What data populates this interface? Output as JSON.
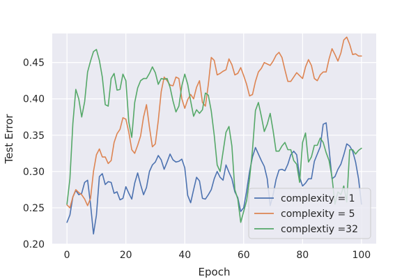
{
  "chart_data": {
    "type": "line",
    "title": "",
    "xlabel": "Epoch",
    "ylabel": "Test Error",
    "xlim": [
      -5,
      105
    ],
    "ylim": [
      0.2,
      0.49
    ],
    "xticks": [
      0,
      20,
      40,
      60,
      80,
      100
    ],
    "xtick_labels": [
      "0",
      "20",
      "40",
      "60",
      "80",
      "100"
    ],
    "yticks": [
      0.2,
      0.25,
      0.3,
      0.35,
      0.4,
      0.45
    ],
    "ytick_labels": [
      "0.20",
      "0.25",
      "0.30",
      "0.35",
      "0.40",
      "0.45"
    ],
    "grid": true,
    "legend_position": "lower-right",
    "background": "#eaeaf2",
    "series": [
      {
        "name": "complexity = 1",
        "color": "#4c72b0",
        "x": [
          0,
          1,
          2,
          3,
          4,
          5,
          6,
          7,
          8,
          9,
          10,
          11,
          12,
          13,
          14,
          15,
          16,
          17,
          18,
          19,
          20,
          21,
          22,
          23,
          24,
          25,
          26,
          27,
          28,
          29,
          30,
          31,
          32,
          33,
          34,
          35,
          36,
          37,
          38,
          39,
          40,
          41,
          42,
          43,
          44,
          45,
          46,
          47,
          48,
          49,
          50,
          51,
          52,
          53,
          54,
          55,
          56,
          57,
          58,
          59,
          60,
          61,
          62,
          63,
          64,
          65,
          66,
          67,
          68,
          69,
          70,
          71,
          72,
          73,
          74,
          75,
          76,
          77,
          78,
          79,
          80,
          81,
          82,
          83,
          84,
          85,
          86,
          87,
          88,
          89,
          90,
          91,
          92,
          93,
          94,
          95,
          96,
          97,
          98,
          99,
          100
        ],
        "y": [
          0.23,
          0.24,
          0.265,
          0.274,
          0.268,
          0.27,
          0.285,
          0.288,
          0.255,
          0.214,
          0.24,
          0.293,
          0.297,
          0.282,
          0.286,
          0.285,
          0.27,
          0.272,
          0.261,
          0.263,
          0.279,
          0.27,
          0.262,
          0.284,
          0.298,
          0.282,
          0.268,
          0.278,
          0.3,
          0.309,
          0.313,
          0.322,
          0.316,
          0.303,
          0.313,
          0.324,
          0.316,
          0.313,
          0.314,
          0.317,
          0.305,
          0.267,
          0.257,
          0.275,
          0.292,
          0.287,
          0.263,
          0.262,
          0.268,
          0.275,
          0.29,
          0.3,
          0.292,
          0.288,
          0.309,
          0.299,
          0.29,
          0.272,
          0.264,
          0.245,
          0.25,
          0.273,
          0.3,
          0.32,
          0.333,
          0.324,
          0.315,
          0.307,
          0.29,
          0.253,
          0.268,
          0.289,
          0.302,
          0.303,
          0.301,
          0.31,
          0.323,
          0.328,
          0.323,
          0.292,
          0.28,
          0.284,
          0.29,
          0.29,
          0.314,
          0.324,
          0.334,
          0.365,
          0.367,
          0.331,
          0.29,
          0.293,
          0.303,
          0.31,
          0.323,
          0.338,
          0.335,
          0.328,
          0.313,
          0.29,
          0.255
        ]
      },
      {
        "name": "complexity = 5",
        "color": "#dd8452",
        "x": [
          0,
          1,
          2,
          3,
          4,
          5,
          6,
          7,
          8,
          9,
          10,
          11,
          12,
          13,
          14,
          15,
          16,
          17,
          18,
          19,
          20,
          21,
          22,
          23,
          24,
          25,
          26,
          27,
          28,
          29,
          30,
          31,
          32,
          33,
          34,
          35,
          36,
          37,
          38,
          39,
          40,
          41,
          42,
          43,
          44,
          45,
          46,
          47,
          48,
          49,
          50,
          51,
          52,
          53,
          54,
          55,
          56,
          57,
          58,
          59,
          60,
          61,
          62,
          63,
          64,
          65,
          66,
          67,
          68,
          69,
          70,
          71,
          72,
          73,
          74,
          75,
          76,
          77,
          78,
          79,
          80,
          81,
          82,
          83,
          84,
          85,
          86,
          87,
          88,
          89,
          90,
          91,
          92,
          93,
          94,
          95,
          96,
          97,
          98,
          99,
          100
        ],
        "y": [
          0.254,
          0.25,
          0.265,
          0.275,
          0.271,
          0.268,
          0.262,
          0.253,
          0.263,
          0.3,
          0.323,
          0.331,
          0.32,
          0.32,
          0.311,
          0.315,
          0.34,
          0.352,
          0.358,
          0.374,
          0.372,
          0.354,
          0.33,
          0.325,
          0.336,
          0.349,
          0.375,
          0.392,
          0.361,
          0.334,
          0.338,
          0.37,
          0.41,
          0.43,
          0.425,
          0.419,
          0.418,
          0.43,
          0.428,
          0.4,
          0.387,
          0.399,
          0.406,
          0.4,
          0.416,
          0.425,
          0.395,
          0.39,
          0.42,
          0.457,
          0.453,
          0.433,
          0.435,
          0.438,
          0.44,
          0.455,
          0.447,
          0.433,
          0.435,
          0.443,
          0.432,
          0.42,
          0.404,
          0.406,
          0.424,
          0.437,
          0.442,
          0.45,
          0.448,
          0.446,
          0.452,
          0.46,
          0.464,
          0.457,
          0.44,
          0.424,
          0.424,
          0.43,
          0.436,
          0.432,
          0.428,
          0.444,
          0.454,
          0.446,
          0.428,
          0.425,
          0.433,
          0.437,
          0.437,
          0.455,
          0.469,
          0.461,
          0.452,
          0.463,
          0.481,
          0.485,
          0.475,
          0.461,
          0.462,
          0.459,
          0.459
        ]
      },
      {
        "name": "complextiy =32",
        "color": "#55a868",
        "x": [
          0,
          1,
          2,
          3,
          4,
          5,
          6,
          7,
          8,
          9,
          10,
          11,
          12,
          13,
          14,
          15,
          16,
          17,
          18,
          19,
          20,
          21,
          22,
          23,
          24,
          25,
          26,
          27,
          28,
          29,
          30,
          31,
          32,
          33,
          34,
          35,
          36,
          37,
          38,
          39,
          40,
          41,
          42,
          43,
          44,
          45,
          46,
          47,
          48,
          49,
          50,
          51,
          52,
          53,
          54,
          55,
          56,
          57,
          58,
          59,
          60,
          61,
          62,
          63,
          64,
          65,
          66,
          67,
          68,
          69,
          70,
          71,
          72,
          73,
          74,
          75,
          76,
          77,
          78,
          79,
          80,
          81,
          82,
          83,
          84,
          85,
          86,
          87,
          88,
          89,
          90,
          91,
          92,
          93,
          94,
          95,
          96,
          97,
          98,
          99,
          100
        ],
        "y": [
          0.255,
          0.29,
          0.366,
          0.413,
          0.4,
          0.375,
          0.396,
          0.437,
          0.452,
          0.465,
          0.468,
          0.453,
          0.43,
          0.392,
          0.39,
          0.428,
          0.435,
          0.412,
          0.413,
          0.434,
          0.425,
          0.368,
          0.347,
          0.395,
          0.415,
          0.425,
          0.428,
          0.428,
          0.435,
          0.444,
          0.436,
          0.42,
          0.428,
          0.427,
          0.428,
          0.416,
          0.397,
          0.382,
          0.39,
          0.418,
          0.434,
          0.42,
          0.397,
          0.376,
          0.385,
          0.38,
          0.385,
          0.408,
          0.405,
          0.383,
          0.35,
          0.309,
          0.3,
          0.327,
          0.354,
          0.362,
          0.335,
          0.275,
          0.262,
          0.23,
          0.245,
          0.26,
          0.29,
          0.33,
          0.384,
          0.395,
          0.376,
          0.355,
          0.365,
          0.38,
          0.356,
          0.328,
          0.328,
          0.335,
          0.34,
          0.33,
          0.33,
          0.315,
          0.31,
          0.285,
          0.34,
          0.353,
          0.313,
          0.32,
          0.336,
          0.336,
          0.346,
          0.34,
          0.326,
          0.315,
          0.292,
          0.255,
          0.272,
          0.268,
          0.28,
          0.258,
          0.33,
          0.33,
          0.324,
          0.329,
          0.332
        ]
      }
    ]
  }
}
